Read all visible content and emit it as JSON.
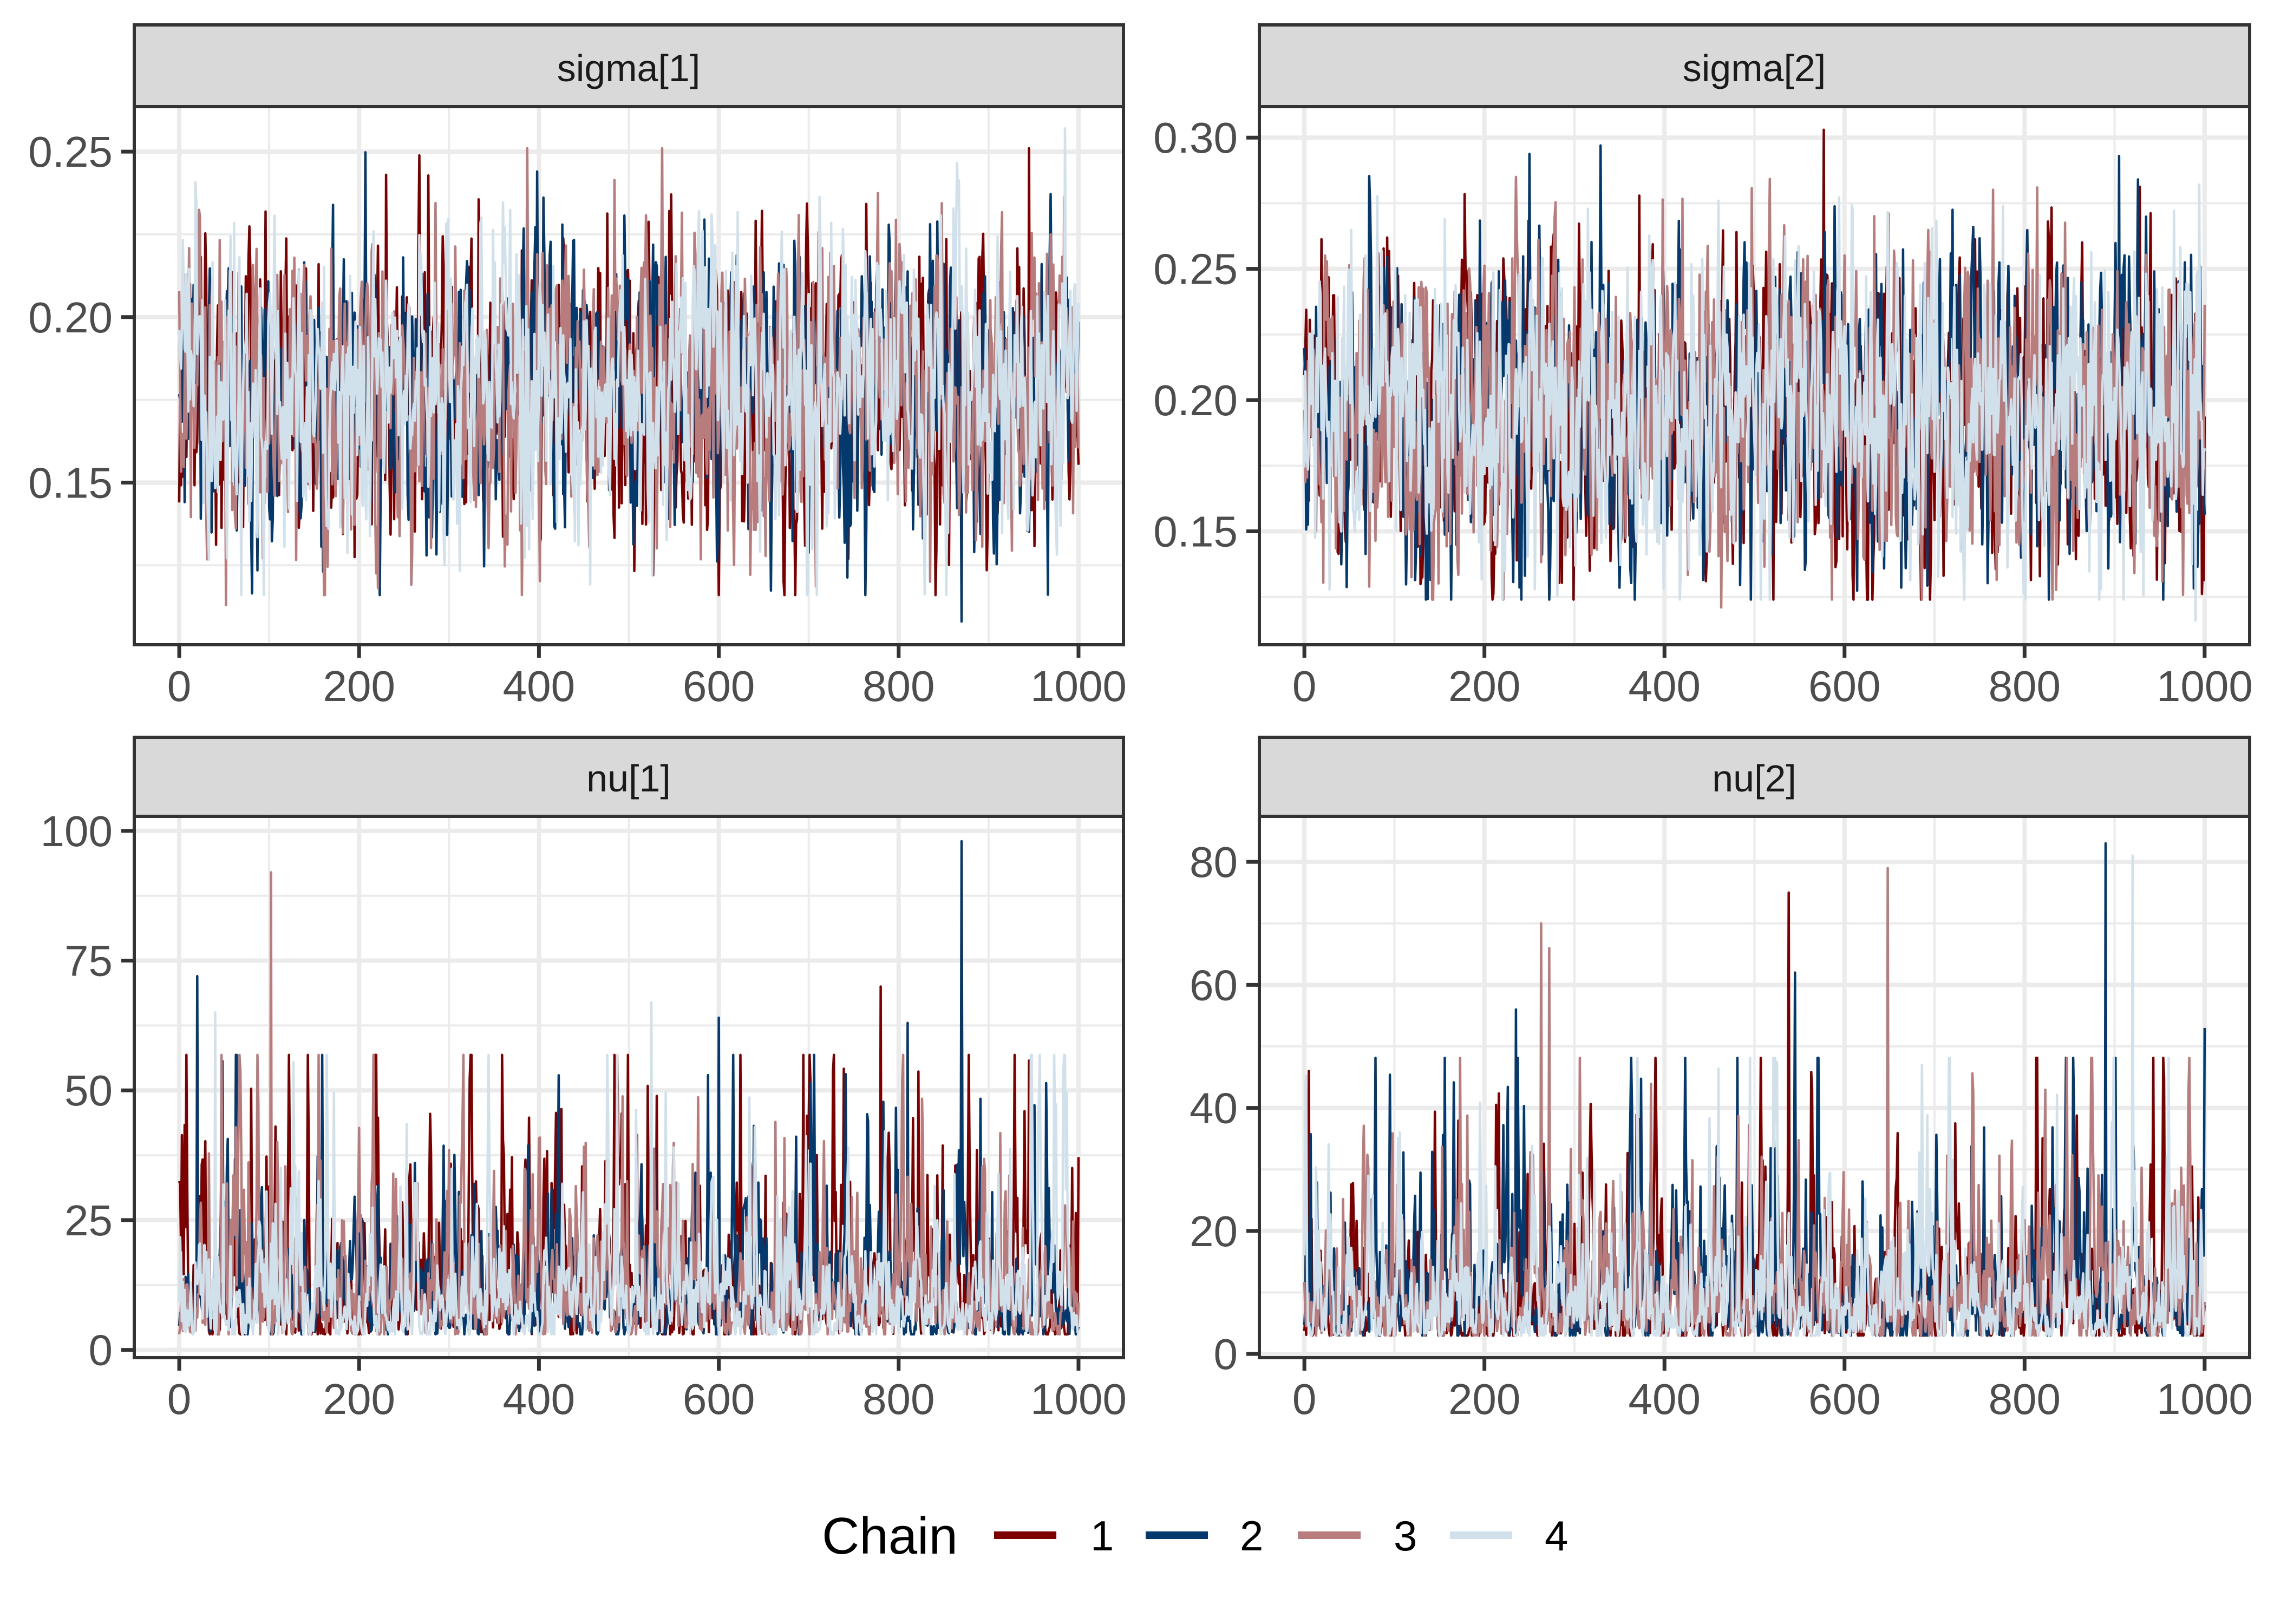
{
  "chart_data": [
    {
      "type": "line",
      "title": "sigma[1]",
      "xlabel": "",
      "ylabel": "",
      "xlim": [
        -50,
        1050
      ],
      "ylim": [
        0.101,
        0.2636
      ],
      "x_ticks": [
        0,
        200,
        400,
        600,
        800,
        1000
      ],
      "x_tick_labels": [
        "0",
        "200",
        "400",
        "600",
        "800",
        "1000"
      ],
      "y_ticks": [
        0.15,
        0.2,
        0.25
      ],
      "y_tick_labels": [
        "0.15",
        "0.20",
        "0.25"
      ],
      "y_minor_ticks": [
        0.125,
        0.175,
        0.225
      ],
      "grid": true,
      "iterations": 1000,
      "series_summary": {
        "center": 0.178,
        "spread": 0.022,
        "min": 0.108,
        "max": 0.257
      },
      "notable_points": [
        {
          "chain": "3",
          "x": 52,
          "y": 0.113
        },
        {
          "chain": "2",
          "x": 870,
          "y": 0.108
        },
        {
          "chain": "4",
          "x": 985,
          "y": 0.257
        },
        {
          "chain": "1",
          "x": 945,
          "y": 0.251
        },
        {
          "chain": "2",
          "x": 398,
          "y": 0.244
        },
        {
          "chain": "1",
          "x": 230,
          "y": 0.243
        }
      ]
    },
    {
      "type": "line",
      "title": "sigma[2]",
      "xlabel": "",
      "ylabel": "",
      "xlim": [
        -50,
        1050
      ],
      "ylim": [
        0.1068,
        0.3118
      ],
      "x_ticks": [
        0,
        200,
        400,
        600,
        800,
        1000
      ],
      "x_tick_labels": [
        "0",
        "200",
        "400",
        "600",
        "800",
        "1000"
      ],
      "y_ticks": [
        0.15,
        0.2,
        0.25,
        0.3
      ],
      "y_tick_labels": [
        "0.15",
        "0.20",
        "0.25",
        "0.30"
      ],
      "y_minor_ticks": [
        0.125,
        0.175,
        0.225,
        0.275
      ],
      "grid": true,
      "iterations": 1000,
      "series_summary": {
        "center": 0.195,
        "spread": 0.03,
        "min": 0.116,
        "max": 0.303
      },
      "notable_points": [
        {
          "chain": "1",
          "x": 577,
          "y": 0.303
        },
        {
          "chain": "2",
          "x": 905,
          "y": 0.293
        },
        {
          "chain": "3",
          "x": 463,
          "y": 0.121
        },
        {
          "chain": "4",
          "x": 990,
          "y": 0.116
        },
        {
          "chain": "3",
          "x": 235,
          "y": 0.285
        }
      ]
    },
    {
      "type": "line",
      "title": "nu[1]",
      "xlabel": "",
      "ylabel": "",
      "xlim": [
        -50,
        1050
      ],
      "ylim": [
        -1.5,
        102.8
      ],
      "x_ticks": [
        0,
        200,
        400,
        600,
        800,
        1000
      ],
      "x_tick_labels": [
        "0",
        "200",
        "400",
        "600",
        "800",
        "1000"
      ],
      "y_ticks": [
        0,
        25,
        50,
        75,
        100
      ],
      "y_tick_labels": [
        "0",
        "25",
        "50",
        "75",
        "100"
      ],
      "y_minor_ticks": [
        12.5,
        37.5,
        62.5,
        87.5
      ],
      "grid": true,
      "iterations": 1000,
      "series_summary": {
        "floor": 3,
        "typical": 10,
        "max": 98
      },
      "notable_points": [
        {
          "chain": "2",
          "x": 870,
          "y": 98
        },
        {
          "chain": "3",
          "x": 102,
          "y": 92
        },
        {
          "chain": "2",
          "x": 20,
          "y": 72
        },
        {
          "chain": "1",
          "x": 780,
          "y": 70
        },
        {
          "chain": "4",
          "x": 40,
          "y": 65
        },
        {
          "chain": "4",
          "x": 525,
          "y": 67
        },
        {
          "chain": "2",
          "x": 600,
          "y": 64
        },
        {
          "chain": "2",
          "x": 810,
          "y": 63
        }
      ]
    },
    {
      "type": "line",
      "title": "nu[2]",
      "xlabel": "",
      "ylabel": "",
      "xlim": [
        -50,
        1050
      ],
      "ylim": [
        -0.6,
        87.4
      ],
      "x_ticks": [
        0,
        200,
        400,
        600,
        800,
        1000
      ],
      "x_tick_labels": [
        "0",
        "200",
        "400",
        "600",
        "800",
        "1000"
      ],
      "y_ticks": [
        0,
        20,
        40,
        60,
        80
      ],
      "y_tick_labels": [
        "0",
        "20",
        "40",
        "60",
        "80"
      ],
      "y_minor_ticks": [
        10,
        30,
        50,
        70
      ],
      "grid": true,
      "iterations": 1000,
      "series_summary": {
        "floor": 3,
        "typical": 8,
        "max": 83
      },
      "notable_points": [
        {
          "chain": "2",
          "x": 890,
          "y": 83
        },
        {
          "chain": "4",
          "x": 920,
          "y": 81
        },
        {
          "chain": "3",
          "x": 648,
          "y": 79
        },
        {
          "chain": "1",
          "x": 538,
          "y": 75
        },
        {
          "chain": "3",
          "x": 263,
          "y": 70
        },
        {
          "chain": "3",
          "x": 272,
          "y": 66
        },
        {
          "chain": "2",
          "x": 545,
          "y": 62
        },
        {
          "chain": "2",
          "x": 235,
          "y": 56
        },
        {
          "chain": "2",
          "x": 1000,
          "y": 53
        },
        {
          "chain": "1",
          "x": 5,
          "y": 46
        }
      ]
    }
  ],
  "legend": {
    "title": "Chain",
    "position": "bottom",
    "items": [
      {
        "label": "1",
        "color": "#7C0000"
      },
      {
        "label": "2",
        "color": "#03396C"
      },
      {
        "label": "3",
        "color": "#B97C7C"
      },
      {
        "label": "4",
        "color": "#D1E1EC"
      }
    ]
  },
  "colors": {
    "strip_background": "#D9D9D9",
    "panel_border": "#333333",
    "grid_major": "#EBEBEB",
    "tick_text": "#4D4D4D",
    "strip_text": "#1A1A1A"
  }
}
